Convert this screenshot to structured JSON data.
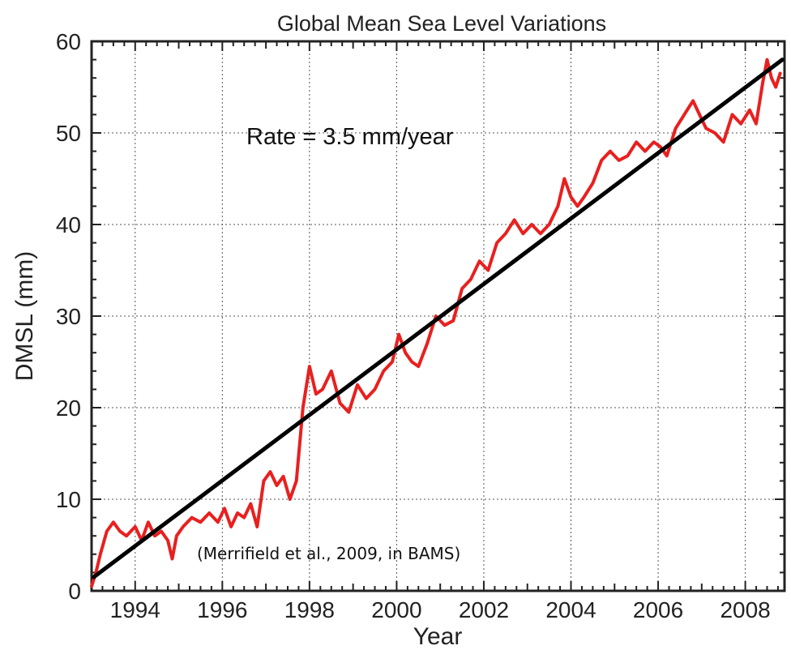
{
  "chart_data": {
    "type": "line",
    "title": "Global Mean Sea Level Variations",
    "xlabel": "Year",
    "ylabel": "DMSL (mm)",
    "xlim": [
      1993.0,
      2008.9
    ],
    "ylim": [
      0,
      60
    ],
    "grid": true,
    "x_ticks": [
      1994,
      1996,
      1998,
      2000,
      2002,
      2004,
      2006,
      2008
    ],
    "y_ticks": [
      0,
      10,
      20,
      30,
      40,
      50,
      60
    ],
    "annotations": [
      "Rate = 3.5 mm/year",
      "(Merrifield et al., 2009, in BAMS)"
    ],
    "colors": {
      "series": "#e8201f",
      "trend": "#000000",
      "grid": "#555555"
    },
    "series": [
      {
        "x": [
          1993.0,
          1993.1,
          1993.2,
          1993.35,
          1993.5,
          1993.65,
          1993.8,
          1994.0,
          1994.15,
          1994.3,
          1994.45,
          1994.6,
          1994.75,
          1994.85,
          1994.95,
          1995.1,
          1995.3,
          1995.5,
          1995.7,
          1995.9,
          1996.05,
          1996.2,
          1996.35,
          1996.5,
          1996.65,
          1996.8,
          1996.95,
          1997.1,
          1997.25,
          1997.4,
          1997.55,
          1997.7,
          1997.85,
          1998.0,
          1998.15,
          1998.3,
          1998.5,
          1998.7,
          1998.9,
          1999.1,
          1999.3,
          1999.5,
          1999.7,
          1999.9,
          2000.05,
          2000.2,
          2000.35,
          2000.5,
          2000.7,
          2000.9,
          2001.1,
          2001.3,
          2001.5,
          2001.7,
          2001.9,
          2002.1,
          2002.3,
          2002.5,
          2002.7,
          2002.9,
          2003.1,
          2003.3,
          2003.5,
          2003.7,
          2003.85,
          2004.0,
          2004.15,
          2004.3,
          2004.5,
          2004.7,
          2004.9,
          2005.1,
          2005.3,
          2005.5,
          2005.7,
          2005.9,
          2006.05,
          2006.2,
          2006.4,
          2006.6,
          2006.8,
          2006.95,
          2007.1,
          2007.3,
          2007.5,
          2007.7,
          2007.9,
          2008.1,
          2008.25,
          2008.4,
          2008.5,
          2008.6,
          2008.7,
          2008.8
        ],
        "values": [
          0.5,
          2.0,
          4.0,
          6.5,
          7.5,
          6.5,
          6.0,
          7.0,
          5.5,
          7.5,
          6.0,
          6.5,
          5.5,
          3.5,
          6.0,
          7.0,
          8.0,
          7.5,
          8.5,
          7.5,
          9.0,
          7.0,
          8.5,
          8.0,
          9.5,
          7.0,
          12.0,
          13.0,
          11.5,
          12.5,
          10.0,
          12.0,
          20.0,
          24.5,
          21.5,
          22.0,
          24.0,
          20.5,
          19.5,
          22.5,
          21.0,
          22.0,
          24.0,
          25.0,
          28.0,
          26.0,
          25.0,
          24.5,
          27.0,
          30.0,
          29.0,
          29.5,
          33.0,
          34.0,
          36.0,
          35.0,
          38.0,
          39.0,
          40.5,
          39.0,
          40.0,
          39.0,
          40.0,
          42.0,
          45.0,
          43.0,
          42.0,
          43.0,
          44.5,
          47.0,
          48.0,
          47.0,
          47.5,
          49.0,
          48.0,
          49.0,
          48.5,
          47.5,
          50.5,
          52.0,
          53.5,
          52.0,
          50.5,
          50.0,
          49.0,
          52.0,
          51.0,
          52.5,
          51.0,
          55.5,
          58.0,
          56.0,
          55.0,
          56.5
        ]
      },
      {
        "name": "trend",
        "x": [
          1993.05,
          2008.85
        ],
        "values": [
          1.5,
          58.0
        ]
      }
    ]
  }
}
